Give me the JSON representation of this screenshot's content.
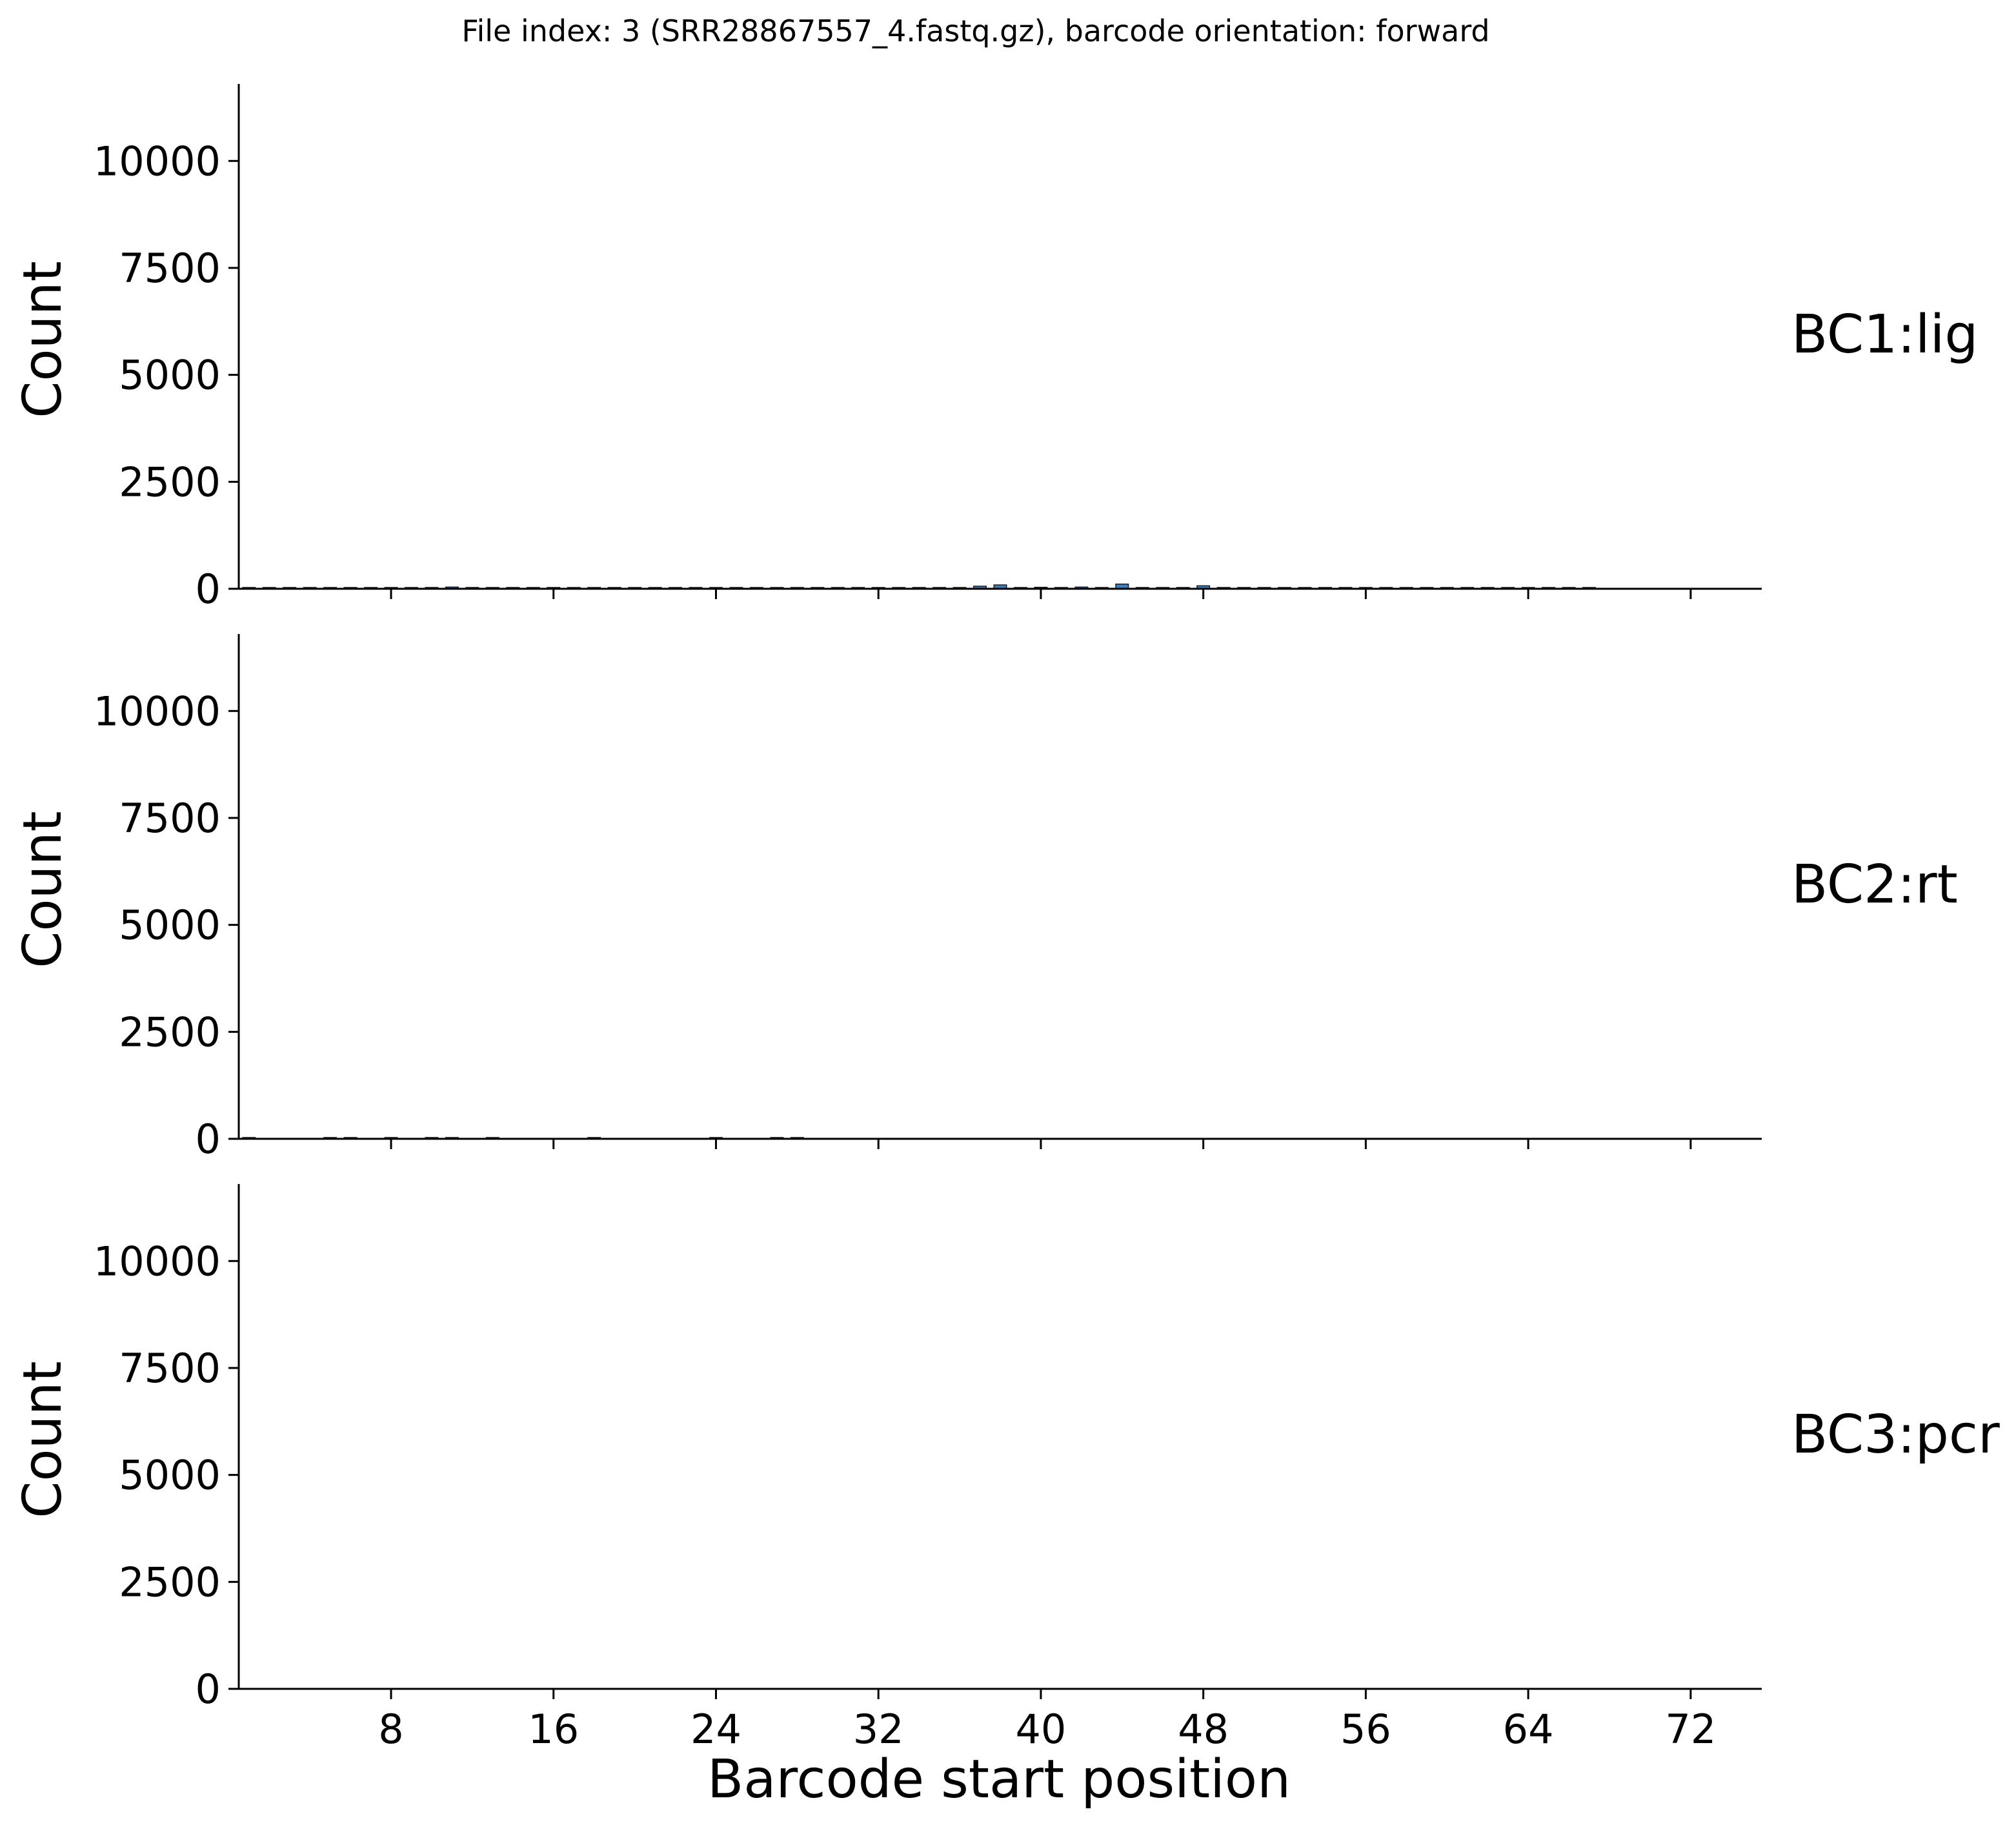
{
  "chart_data": {
    "type": "bar",
    "title": "File index: 3 (SRR28867557_4.fastq.gz), barcode orientation: forward",
    "xlabel": "Barcode start position",
    "ylabel": "Count",
    "xlim": [
      0.5,
      75.5
    ],
    "ylim": [
      0,
      11800
    ],
    "x_ticks": [
      8,
      16,
      24,
      32,
      40,
      48,
      56,
      64,
      72
    ],
    "y_ticks": [
      0,
      2500,
      5000,
      7500,
      10000
    ],
    "bar_color": "#3a7fc4",
    "bar_edge_color": "#1a1a1a",
    "facets": [
      {
        "label": "BC1:lig",
        "positions": [
          1,
          2,
          3,
          4,
          5,
          6,
          7,
          8,
          9,
          10,
          11,
          12,
          13,
          14,
          15,
          16,
          17,
          18,
          19,
          20,
          21,
          22,
          23,
          24,
          25,
          26,
          27,
          28,
          29,
          30,
          31,
          32,
          33,
          34,
          35,
          36,
          37,
          38,
          39,
          40,
          41,
          42,
          43,
          44,
          45,
          46,
          47,
          48,
          49,
          50,
          51,
          52,
          53,
          54,
          55,
          56,
          57,
          58,
          59,
          60,
          61,
          62,
          63,
          64,
          65,
          66,
          67
        ],
        "counts": [
          20,
          25,
          10,
          10,
          30,
          15,
          10,
          10,
          10,
          10,
          40,
          15,
          10,
          10,
          10,
          10,
          10,
          10,
          10,
          10,
          10,
          25,
          10,
          10,
          10,
          10,
          10,
          10,
          10,
          10,
          10,
          10,
          10,
          10,
          10,
          10,
          60,
          90,
          30,
          35,
          20,
          40,
          20,
          110,
          30,
          20,
          20,
          70,
          30,
          20,
          15,
          15,
          15,
          20,
          20,
          20,
          15,
          15,
          20,
          30,
          25,
          20,
          25,
          15,
          15,
          20,
          30
        ]
      },
      {
        "label": "BC2:rt",
        "positions": [
          1,
          5,
          6,
          8,
          10,
          11,
          13,
          18,
          24,
          27,
          28
        ],
        "counts": [
          15,
          10,
          10,
          10,
          10,
          10,
          10,
          10,
          15,
          10,
          10
        ]
      },
      {
        "label": "BC3:pcr",
        "positions": [],
        "counts": []
      }
    ]
  }
}
